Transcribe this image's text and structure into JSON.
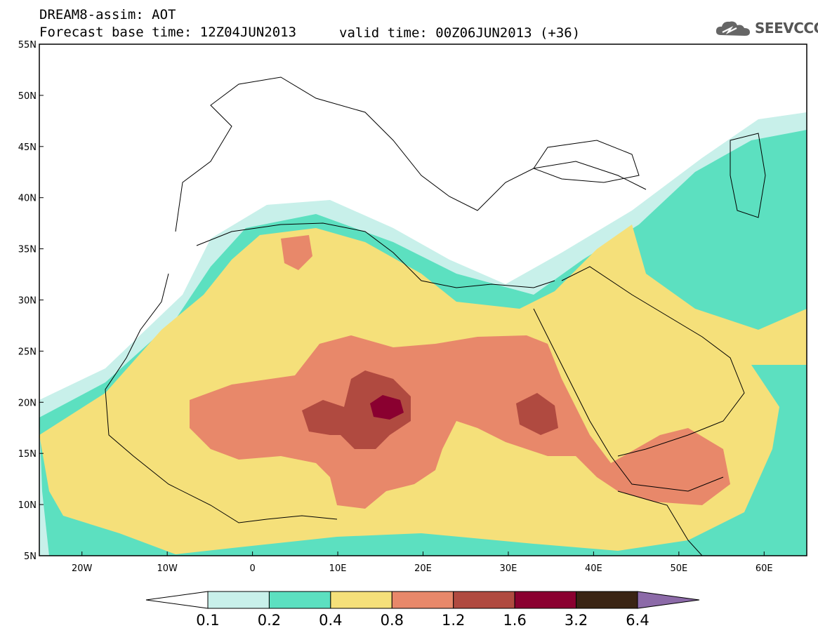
{
  "header": {
    "title_line_1": "DREAM8-assim: AOT",
    "title_line_2": "Forecast base time: 12Z04JUN2013",
    "valid_time": "valid time: 00Z06JUN2013 (+36)",
    "logo_text": "SEEVCCC"
  },
  "map": {
    "variable": "AOT",
    "lon_range": [
      -25,
      65
    ],
    "lat_range": [
      5,
      55
    ],
    "lat_ticks": [
      "55N",
      "50N",
      "45N",
      "40N",
      "35N",
      "30N",
      "25N",
      "20N",
      "15N",
      "10N",
      "5N"
    ],
    "lon_ticks": [
      "20W",
      "10W",
      "0",
      "10E",
      "20E",
      "30E",
      "40E",
      "50E",
      "60E"
    ]
  },
  "colorbar": {
    "levels": [
      "0.1",
      "0.2",
      "0.4",
      "0.8",
      "1.2",
      "1.6",
      "3.2",
      "6.4"
    ],
    "colors": [
      "#ffffff",
      "#c8f0ea",
      "#5ce0c0",
      "#f5e07a",
      "#e8886a",
      "#b04a40",
      "#8a0030",
      "#3a2414",
      "#8c6aa8"
    ]
  }
}
